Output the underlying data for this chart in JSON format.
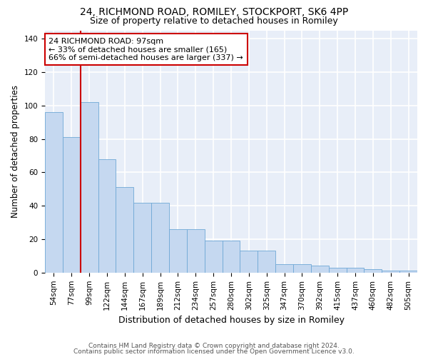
{
  "title_line1": "24, RICHMOND ROAD, ROMILEY, STOCKPORT, SK6 4PP",
  "title_line2": "Size of property relative to detached houses in Romiley",
  "xlabel": "Distribution of detached houses by size in Romiley",
  "ylabel": "Number of detached properties",
  "categories": [
    "54sqm",
    "77sqm",
    "99sqm",
    "122sqm",
    "144sqm",
    "167sqm",
    "189sqm",
    "212sqm",
    "234sqm",
    "257sqm",
    "280sqm",
    "302sqm",
    "325sqm",
    "347sqm",
    "370sqm",
    "392sqm",
    "415sqm",
    "437sqm",
    "460sqm",
    "482sqm",
    "505sqm"
  ],
  "values": [
    96,
    81,
    102,
    68,
    51,
    42,
    42,
    26,
    26,
    19,
    19,
    13,
    13,
    5,
    5,
    4,
    3,
    3,
    2,
    1,
    1
  ],
  "bar_color": "#c5d8f0",
  "bar_edge_color": "#6fa8d6",
  "vline_x_index": 2,
  "vline_color": "#cc0000",
  "annotation_text": "24 RICHMOND ROAD: 97sqm\n← 33% of detached houses are smaller (165)\n66% of semi-detached houses are larger (337) →",
  "annotation_box_edge_color": "#cc0000",
  "ylim": [
    0,
    145
  ],
  "yticks": [
    0,
    20,
    40,
    60,
    80,
    100,
    120,
    140
  ],
  "background_color": "#e8eef8",
  "grid_color": "#ffffff",
  "footer_line1": "Contains HM Land Registry data © Crown copyright and database right 2024.",
  "footer_line2": "Contains public sector information licensed under the Open Government Licence v3.0.",
  "title_fontsize": 10,
  "subtitle_fontsize": 9,
  "axis_label_fontsize": 8.5,
  "tick_fontsize": 7.5,
  "annotation_fontsize": 8,
  "footer_fontsize": 6.5
}
